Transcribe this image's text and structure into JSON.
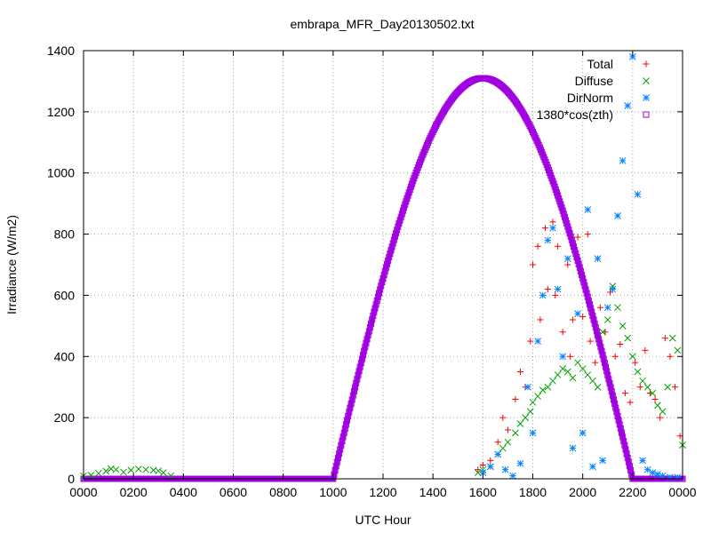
{
  "chart_data": {
    "type": "scatter",
    "title": "embrapa_MFR_Day20130502.txt",
    "xlabel": "UTC Hour",
    "ylabel": "Irradiance (W/m2)",
    "xlim": [
      0,
      24
    ],
    "ylim": [
      0,
      1400
    ],
    "x_ticks": [
      0,
      2,
      4,
      6,
      8,
      10,
      12,
      14,
      16,
      18,
      20,
      22,
      24
    ],
    "x_tick_labels": [
      "0000",
      "0200",
      "0400",
      "0600",
      "0800",
      "1000",
      "1200",
      "1400",
      "1600",
      "1800",
      "2000",
      "2200",
      "0000"
    ],
    "y_ticks": [
      0,
      200,
      400,
      600,
      800,
      1000,
      1200,
      1400
    ],
    "y_tick_labels": [
      "0",
      "200",
      "400",
      "600",
      "800",
      "1000",
      "1200",
      "1400"
    ],
    "grid": true,
    "legend_position": "top-right",
    "series": [
      {
        "name": "Total",
        "marker": "plus",
        "color": "#ff0000",
        "points": [
          [
            15.8,
            30
          ],
          [
            16.0,
            45
          ],
          [
            16.3,
            60
          ],
          [
            16.6,
            120
          ],
          [
            16.8,
            200
          ],
          [
            17.0,
            160
          ],
          [
            17.3,
            260
          ],
          [
            17.5,
            350
          ],
          [
            17.7,
            300
          ],
          [
            17.9,
            450
          ],
          [
            18.0,
            700
          ],
          [
            18.2,
            760
          ],
          [
            18.3,
            520
          ],
          [
            18.5,
            820
          ],
          [
            18.6,
            620
          ],
          [
            18.8,
            840
          ],
          [
            18.9,
            600
          ],
          [
            19.0,
            760
          ],
          [
            19.2,
            480
          ],
          [
            19.4,
            700
          ],
          [
            19.5,
            400
          ],
          [
            19.6,
            520
          ],
          [
            19.8,
            790
          ],
          [
            20.0,
            530
          ],
          [
            20.2,
            800
          ],
          [
            20.3,
            450
          ],
          [
            20.5,
            380
          ],
          [
            20.7,
            560
          ],
          [
            20.9,
            480
          ],
          [
            21.1,
            610
          ],
          [
            21.3,
            400
          ],
          [
            21.5,
            440
          ],
          [
            21.7,
            280
          ],
          [
            21.9,
            250
          ],
          [
            22.1,
            380
          ],
          [
            22.3,
            300
          ],
          [
            22.5,
            420
          ],
          [
            22.7,
            280
          ],
          [
            22.9,
            260
          ],
          [
            23.1,
            200
          ],
          [
            23.3,
            460
          ],
          [
            23.5,
            400
          ],
          [
            23.7,
            300
          ],
          [
            23.9,
            140
          ]
        ]
      },
      {
        "name": "Diffuse",
        "marker": "cross",
        "color": "#00a000",
        "points": [
          [
            0.0,
            10
          ],
          [
            0.3,
            12
          ],
          [
            0.6,
            18
          ],
          [
            0.9,
            25
          ],
          [
            1.1,
            33
          ],
          [
            1.3,
            30
          ],
          [
            1.6,
            22
          ],
          [
            1.9,
            28
          ],
          [
            2.2,
            32
          ],
          [
            2.5,
            30
          ],
          [
            2.8,
            28
          ],
          [
            3.0,
            26
          ],
          [
            3.2,
            20
          ],
          [
            3.5,
            10
          ],
          [
            15.8,
            20
          ],
          [
            16.0,
            30
          ],
          [
            16.3,
            40
          ],
          [
            16.6,
            80
          ],
          [
            16.8,
            100
          ],
          [
            17.0,
            120
          ],
          [
            17.3,
            150
          ],
          [
            17.5,
            180
          ],
          [
            17.7,
            200
          ],
          [
            17.9,
            220
          ],
          [
            18.0,
            250
          ],
          [
            18.2,
            270
          ],
          [
            18.4,
            290
          ],
          [
            18.6,
            300
          ],
          [
            18.8,
            320
          ],
          [
            19.0,
            340
          ],
          [
            19.2,
            360
          ],
          [
            19.4,
            350
          ],
          [
            19.6,
            330
          ],
          [
            19.8,
            380
          ],
          [
            20.0,
            360
          ],
          [
            20.2,
            340
          ],
          [
            20.4,
            320
          ],
          [
            20.6,
            300
          ],
          [
            20.8,
            480
          ],
          [
            21.0,
            520
          ],
          [
            21.2,
            630
          ],
          [
            21.4,
            560
          ],
          [
            21.6,
            500
          ],
          [
            21.8,
            460
          ],
          [
            22.0,
            400
          ],
          [
            22.2,
            350
          ],
          [
            22.4,
            320
          ],
          [
            22.6,
            300
          ],
          [
            22.8,
            280
          ],
          [
            23.0,
            240
          ],
          [
            23.2,
            220
          ],
          [
            23.4,
            300
          ],
          [
            23.6,
            460
          ],
          [
            23.8,
            420
          ],
          [
            24.0,
            110
          ]
        ]
      },
      {
        "name": "DirNorm",
        "marker": "star",
        "color": "#0080ff",
        "points": [
          [
            16.0,
            20
          ],
          [
            16.3,
            40
          ],
          [
            16.6,
            80
          ],
          [
            16.9,
            30
          ],
          [
            17.2,
            10
          ],
          [
            17.5,
            50
          ],
          [
            17.8,
            300
          ],
          [
            18.0,
            150
          ],
          [
            18.2,
            450
          ],
          [
            18.4,
            600
          ],
          [
            18.6,
            780
          ],
          [
            18.8,
            820
          ],
          [
            19.0,
            620
          ],
          [
            19.2,
            400
          ],
          [
            19.4,
            720
          ],
          [
            19.6,
            100
          ],
          [
            19.8,
            540
          ],
          [
            20.0,
            150
          ],
          [
            20.2,
            880
          ],
          [
            20.4,
            40
          ],
          [
            20.6,
            720
          ],
          [
            20.8,
            60
          ],
          [
            21.0,
            560
          ],
          [
            21.2,
            620
          ],
          [
            21.4,
            860
          ],
          [
            21.6,
            1040
          ],
          [
            21.8,
            1220
          ],
          [
            22.0,
            1380
          ],
          [
            22.2,
            930
          ],
          [
            22.4,
            60
          ],
          [
            22.6,
            30
          ],
          [
            22.8,
            20
          ],
          [
            23.0,
            15
          ],
          [
            23.2,
            10
          ],
          [
            23.5,
            5
          ],
          [
            23.8,
            5
          ]
        ]
      },
      {
        "name": "1380*cos(zth)",
        "marker": "box",
        "color": "#a000e0",
        "curve": {
          "rise": 10.0,
          "set": 22.0,
          "peak_x": 16.0,
          "peak_y": 1310,
          "baseline": 0
        }
      }
    ]
  }
}
